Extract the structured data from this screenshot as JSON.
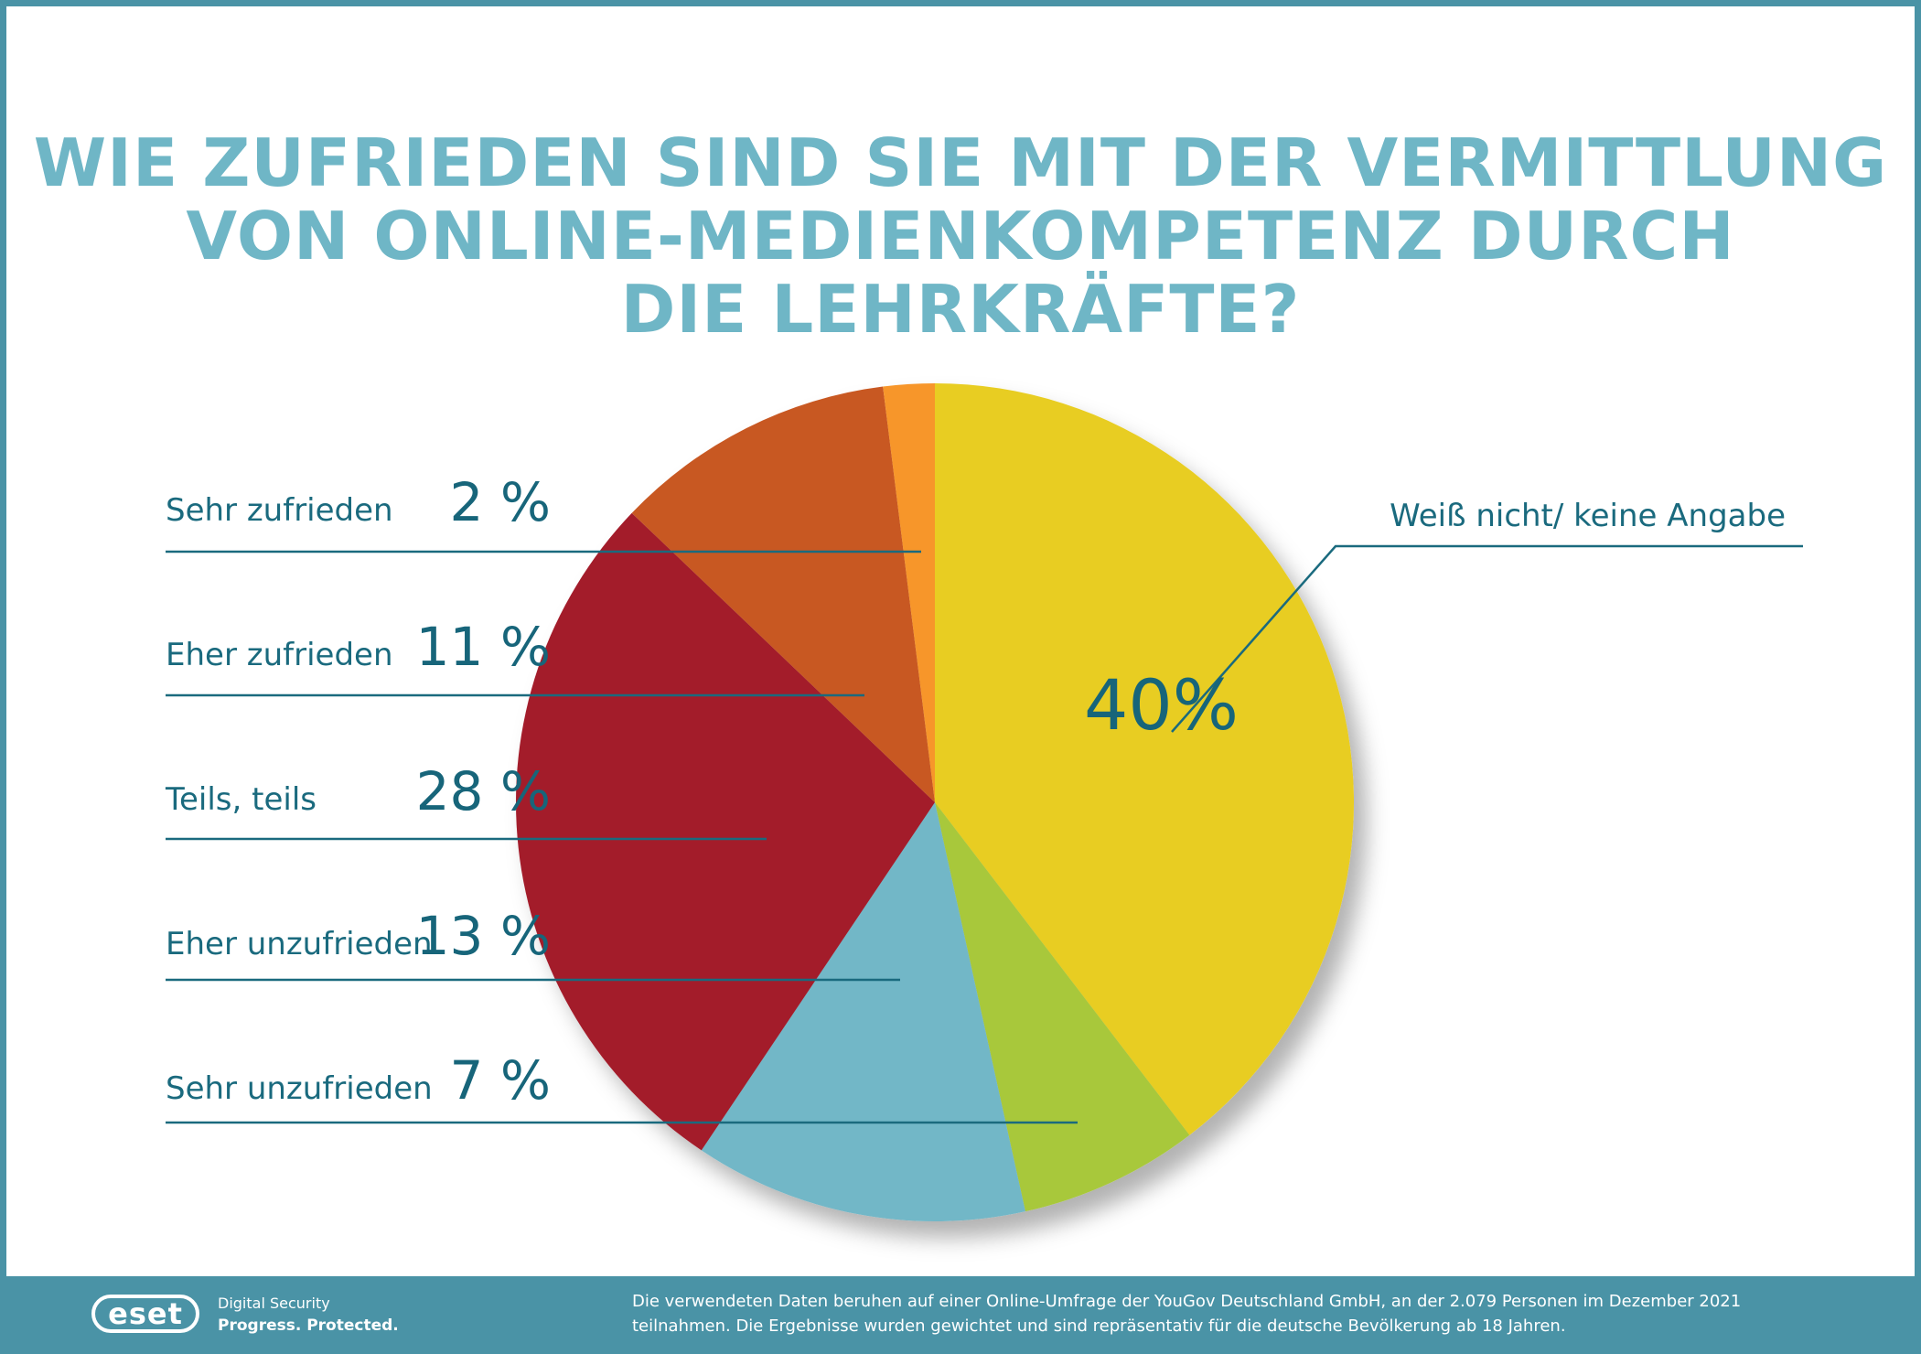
{
  "chart_data": {
    "type": "pie",
    "title": "WIE ZUFRIEDEN SIND SIE MIT DER VERMITTLUNG\nVON ONLINE-MEDIENKOMPETENZ DURCH\nDIE LEHRKRÄFTE?",
    "categories": [
      "Sehr zufrieden",
      "Eher zufrieden",
      "Teils, teils",
      "Eher unzufrieden",
      "Sehr unzufrieden",
      "Weiß nicht/ keine Angabe"
    ],
    "values": [
      2,
      11,
      28,
      13,
      7,
      40
    ],
    "value_labels": [
      "2 %",
      "11 %",
      "28 %",
      "13 %",
      "7 %",
      "40%"
    ],
    "colors": [
      "#f7962a",
      "#c85823",
      "#a31b2c",
      "#72b7c7",
      "#a8c83a",
      "#e8cd24"
    ]
  },
  "footer": {
    "logo": "eset",
    "brand_line_1": "Digital Security",
    "brand_line_2": "Progress. Protected.",
    "note": "Die verwendeten Daten beruhen auf einer Online-Umfrage der YouGov Deutschland GmbH, an der 2.079 Personen im Dezember 2021 teilnahmen. Die Ergebnisse wurden gewichtet und sind repräsentativ für die deutsche Bevölkerung ab 18 Jahren."
  }
}
